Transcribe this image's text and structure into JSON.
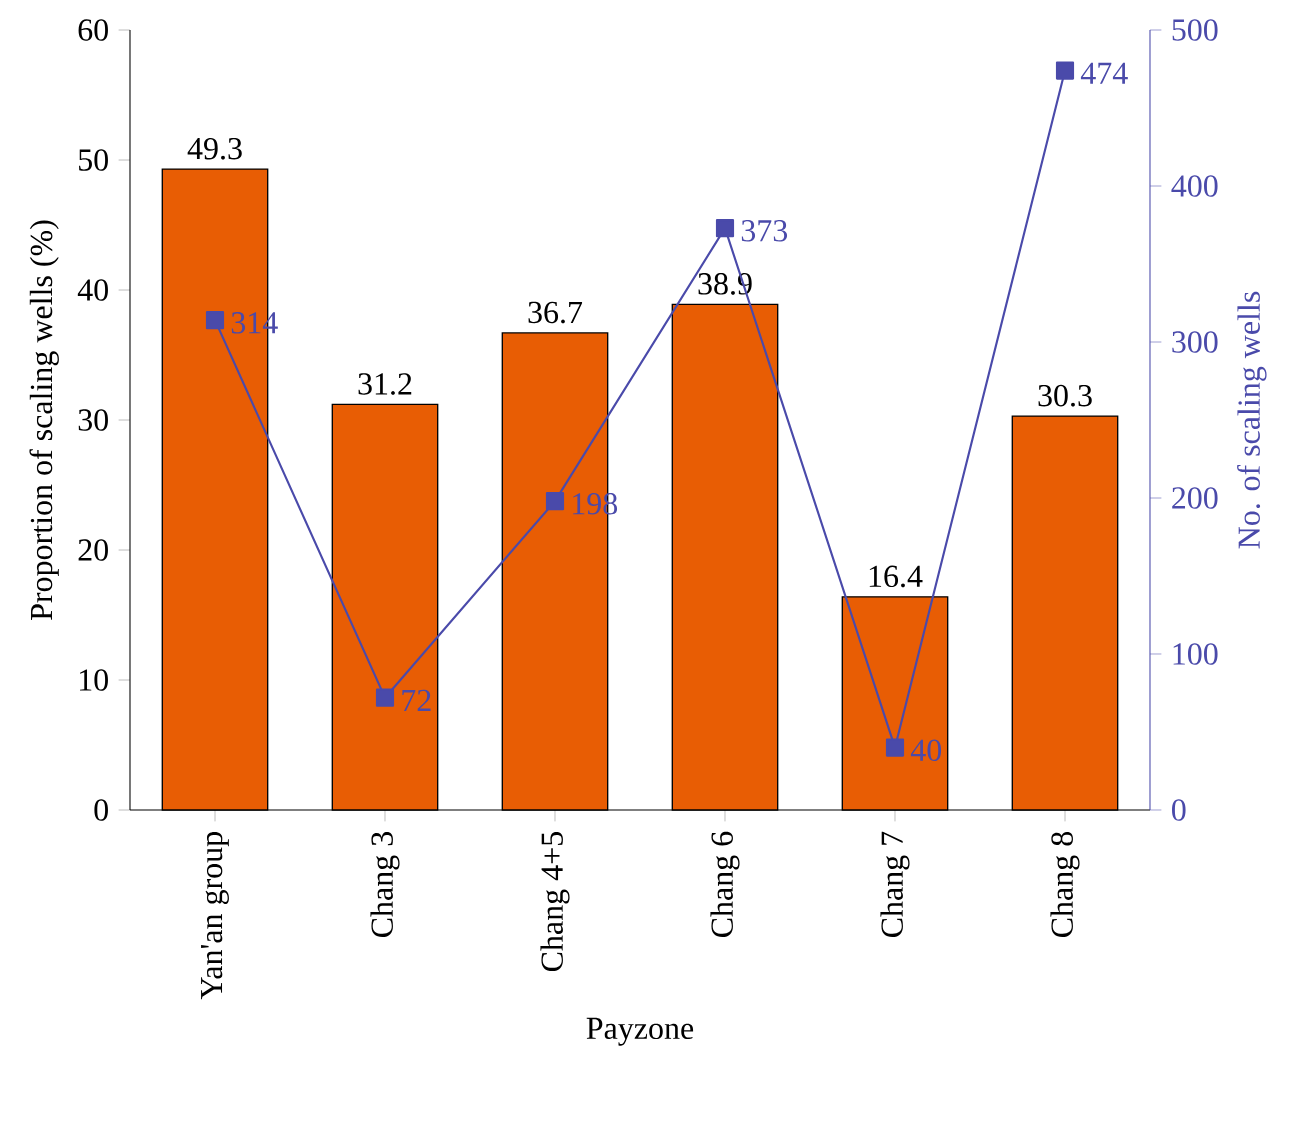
{
  "chart_data": {
    "type": "bar",
    "xlabel": "Payzone",
    "ylabel": "Proportion of scaling wells (%)",
    "y2label": "No. of scaling wells",
    "categories": [
      "Yan'an group",
      "Chang 3",
      "Chang 4+5",
      "Chang 6",
      "Chang 7",
      "Chang 8"
    ],
    "series": [
      {
        "color": "#e85d04",
        "values": [
          49.3,
          31.2,
          36.7,
          38.9,
          16.4,
          30.3
        ]
      },
      {
        "type": "line",
        "axis": "y2",
        "color": "#4a4aaa",
        "marker": "square",
        "values": [
          314,
          72,
          198,
          373,
          40,
          474
        ]
      }
    ],
    "ylim": [
      0,
      60
    ],
    "yticks": [
      0,
      10,
      20,
      30,
      40,
      50,
      60
    ],
    "y2lim": [
      0,
      500
    ],
    "y2ticks": [
      0,
      100,
      200,
      300,
      400,
      500
    ],
    "data_labels": true,
    "grid": false
  }
}
